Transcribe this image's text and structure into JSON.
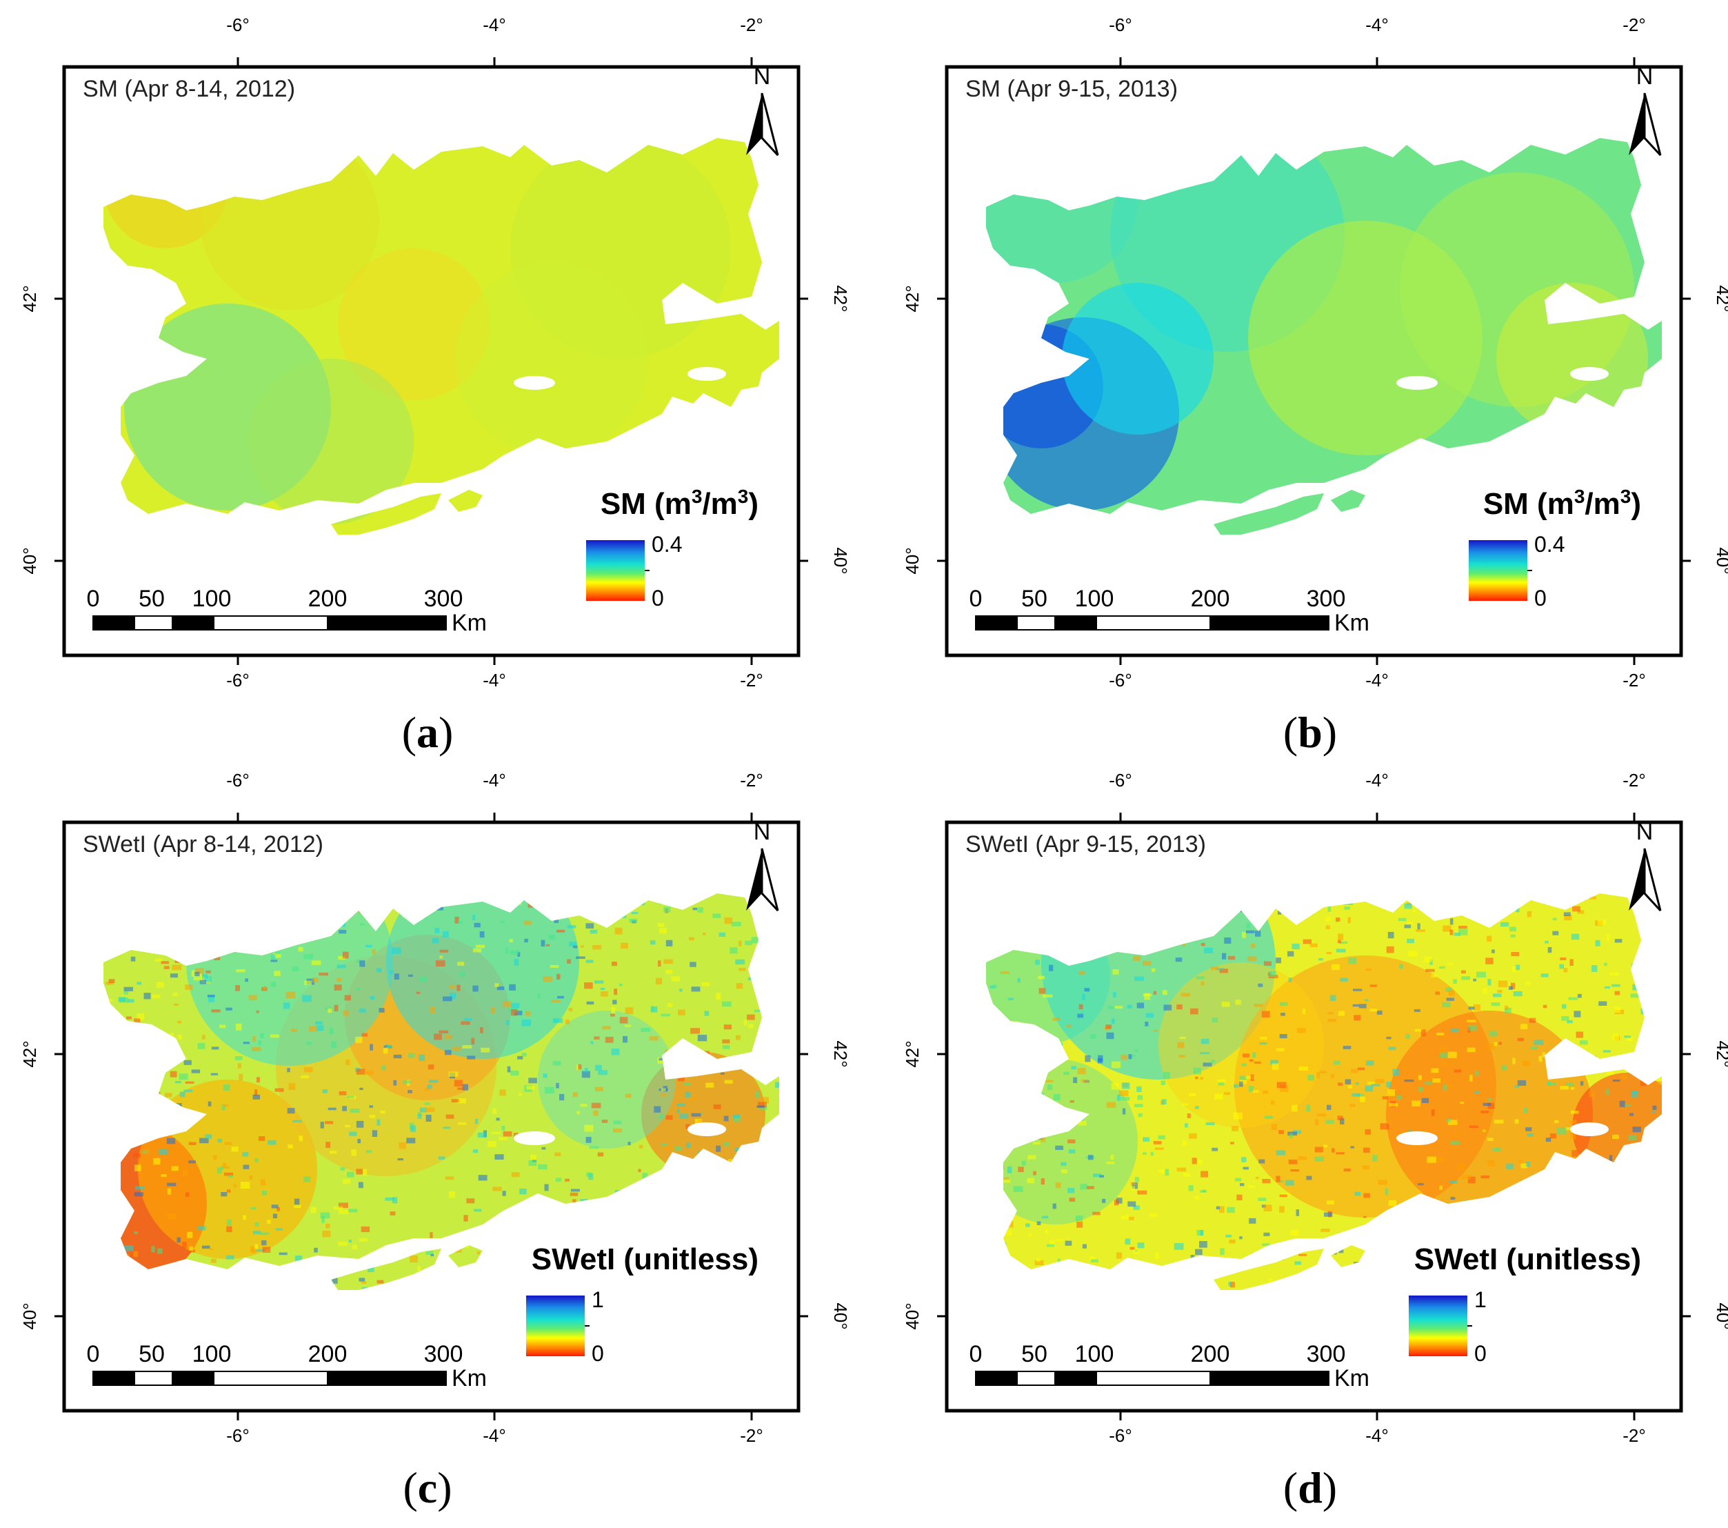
{
  "panels": [
    {
      "id": "a",
      "label": "a",
      "title": "SM (Apr 8-14, 2012)",
      "legend_title": "SM (m3/m3)",
      "legend_unit_html": true,
      "legend_max": "0.4",
      "legend_min": "0",
      "pattern": "sm2012"
    },
    {
      "id": "b",
      "label": "b",
      "title": "SM (Apr 9-15, 2013)",
      "legend_title": "SM (m3/m3)",
      "legend_unit_html": true,
      "legend_max": "0.4",
      "legend_min": "0",
      "pattern": "sm2013"
    },
    {
      "id": "c",
      "label": "c",
      "title": "SWetI (Apr 8-14, 2012)",
      "legend_title": "SWetI (unitless)",
      "legend_unit_html": false,
      "legend_max": "1",
      "legend_min": "0",
      "pattern": "sw2012"
    },
    {
      "id": "d",
      "label": "d",
      "title": "SWetI (Apr 9-15, 2013)",
      "legend_title": "SWetI (unitless)",
      "legend_unit_html": false,
      "legend_max": "1",
      "legend_min": "0",
      "pattern": "sw2013"
    }
  ],
  "axes": {
    "lon_ticks": [
      "-6°",
      "-4°",
      "-2°"
    ],
    "lat_ticks": [
      "42°",
      "40°"
    ]
  },
  "scale_bar": {
    "labels": [
      "0",
      "50",
      "100",
      "200",
      "300"
    ],
    "unit": "Km"
  },
  "north_arrow": {
    "letter": "N"
  },
  "colors": {
    "ramp": [
      "#1515c8",
      "#1a6fe0",
      "#10d8e8",
      "#40e890",
      "#c8f020",
      "#ffff00",
      "#ffa000",
      "#ff3010",
      "#e00000"
    ],
    "frame": "#000000"
  }
}
